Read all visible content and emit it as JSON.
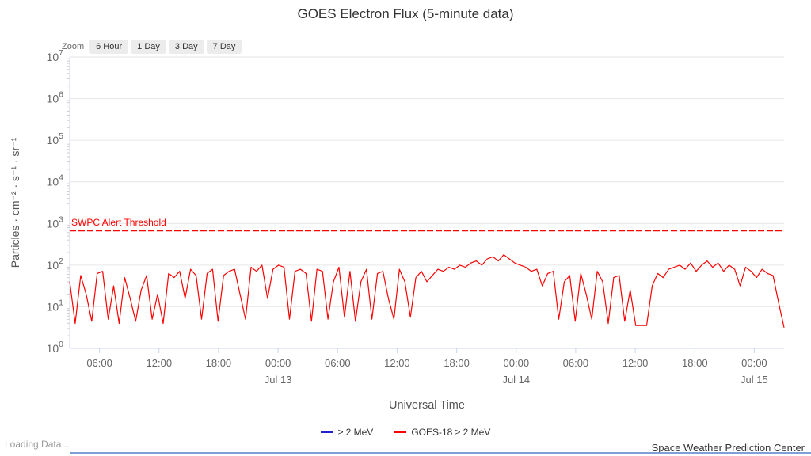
{
  "title": "GOES Electron Flux (5-minute data)",
  "range_selector": {
    "label": "Zoom",
    "buttons": [
      "6 Hour",
      "1 Day",
      "3 Day",
      "7 Day"
    ]
  },
  "legend": [
    {
      "label": "≥ 2 MeV",
      "color": "#2222cc"
    },
    {
      "label": "GOES-18 ≥ 2 MeV",
      "color": "#ff0000"
    }
  ],
  "footer": {
    "loading": "Loading Data...",
    "credit": "Space Weather Prediction Center"
  },
  "chart_data": {
    "type": "line",
    "title": "GOES Electron Flux (5-minute data)",
    "xlabel": "Universal Time",
    "ylabel": "Particles · cm⁻² · s⁻¹ · sr⁻¹",
    "y_scale": "log10",
    "ylim_log10": [
      0,
      7
    ],
    "y_ticks_exponents": [
      0,
      1,
      2,
      3,
      4,
      5,
      6,
      7
    ],
    "grid": true,
    "x_range_hours": [
      0,
      72
    ],
    "x_ticks": [
      {
        "hours": 3,
        "label": "06:00"
      },
      {
        "hours": 9,
        "label": "12:00"
      },
      {
        "hours": 15,
        "label": "18:00"
      },
      {
        "hours": 21,
        "label": "00:00",
        "day": "Jul 13"
      },
      {
        "hours": 27,
        "label": "06:00"
      },
      {
        "hours": 33,
        "label": "12:00"
      },
      {
        "hours": 39,
        "label": "18:00"
      },
      {
        "hours": 45,
        "label": "00:00",
        "day": "Jul 14"
      },
      {
        "hours": 51,
        "label": "06:00"
      },
      {
        "hours": 57,
        "label": "12:00"
      },
      {
        "hours": 63,
        "label": "18:00"
      },
      {
        "hours": 69,
        "label": "00:00",
        "day": "Jul 15"
      }
    ],
    "threshold": {
      "label": "SWPC Alert Threshold",
      "value_log10": 2.83,
      "color": "#ff0000"
    },
    "series": [
      {
        "name": "≥ 2 MeV",
        "color": "#2222cc",
        "values_log10": []
      },
      {
        "name": "GOES-18 ≥ 2 MeV",
        "color": "#ff0000",
        "values_log10": [
          1.6,
          0.6,
          1.75,
          1.3,
          0.65,
          1.8,
          1.85,
          0.7,
          1.5,
          0.6,
          1.7,
          1.2,
          0.65,
          1.4,
          1.75,
          0.7,
          1.3,
          0.6,
          1.8,
          1.7,
          1.85,
          1.2,
          1.9,
          1.75,
          0.7,
          1.8,
          1.9,
          0.65,
          1.75,
          1.85,
          1.9,
          1.3,
          0.7,
          1.95,
          1.85,
          2.0,
          1.2,
          1.9,
          2.0,
          1.95,
          0.7,
          1.85,
          1.9,
          1.8,
          0.65,
          1.9,
          1.85,
          0.7,
          1.6,
          1.95,
          0.75,
          1.85,
          0.65,
          1.6,
          1.9,
          0.7,
          1.8,
          1.85,
          1.2,
          0.7,
          1.9,
          1.6,
          0.75,
          1.7,
          1.85,
          1.6,
          1.75,
          1.9,
          1.85,
          1.95,
          1.9,
          2.0,
          1.95,
          2.05,
          2.1,
          2.0,
          2.15,
          2.2,
          2.1,
          2.25,
          2.15,
          2.05,
          2.0,
          1.95,
          1.85,
          1.9,
          1.5,
          1.8,
          1.85,
          0.7,
          1.6,
          1.75,
          0.65,
          1.8,
          1.3,
          0.7,
          1.85,
          1.6,
          0.6,
          1.7,
          1.75,
          0.65,
          1.4,
          0.55,
          0.55,
          0.55,
          1.5,
          1.8,
          1.7,
          1.9,
          1.95,
          2.0,
          1.9,
          2.05,
          1.85,
          2.0,
          2.1,
          1.95,
          2.05,
          1.85,
          2.0,
          1.9,
          1.5,
          1.95,
          1.85,
          1.7,
          1.9,
          1.8,
          1.75,
          1.1,
          0.5
        ]
      }
    ]
  }
}
